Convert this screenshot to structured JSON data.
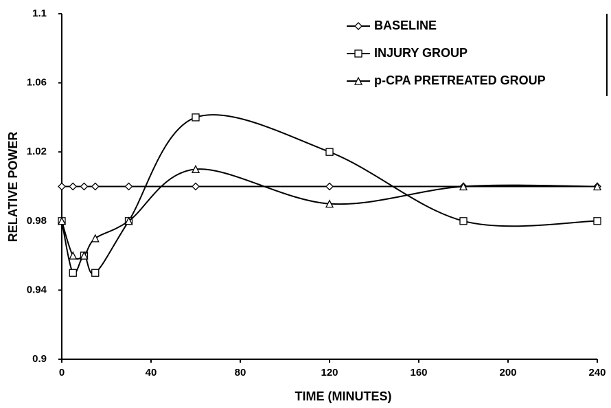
{
  "chart_data": {
    "type": "line",
    "x_label": "TIME (MINUTES)",
    "y_label": "RELATIVE POWER",
    "x": [
      0,
      5,
      10,
      15,
      30,
      60,
      120,
      180,
      240
    ],
    "series": [
      {
        "name": "BASELINE",
        "color": "#000000",
        "marker": "diamond",
        "values": [
          1.0,
          1.0,
          1.0,
          1.0,
          1.0,
          1.0,
          1.0,
          1.0,
          1.0
        ]
      },
      {
        "name": "INJURY GROUP",
        "color": "#000000",
        "marker": "square",
        "values": [
          0.98,
          0.95,
          0.96,
          0.95,
          0.98,
          1.04,
          1.02,
          0.98,
          0.98
        ]
      },
      {
        "name": "p-CPA PRETREATED GROUP",
        "color": "#000000",
        "marker": "triangle",
        "values": [
          0.98,
          0.96,
          0.96,
          0.97,
          0.98,
          1.01,
          0.99,
          1.0,
          1.0
        ]
      }
    ],
    "xlim": [
      0,
      240
    ],
    "xticks": [
      0,
      40,
      80,
      120,
      160,
      200,
      240
    ],
    "ylim": [
      0.9,
      1.1
    ],
    "yticks": [
      0.9,
      0.94,
      0.98,
      1.02,
      1.06,
      1.1
    ],
    "legend": "upper right"
  }
}
